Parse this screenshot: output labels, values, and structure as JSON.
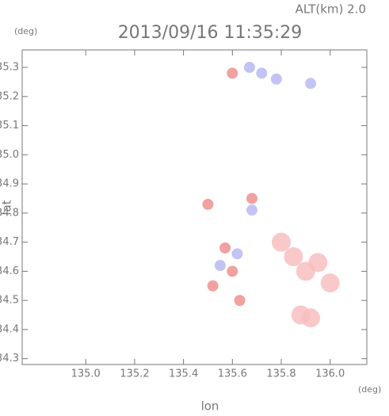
{
  "chart_data": {
    "type": "scatter",
    "title": "2013/09/16 11:35:29",
    "subtitle": "ALT(km) 2.0",
    "y_unit": "(deg)",
    "x_unit": "(deg)",
    "ylabel": "lat",
    "xlabel": "lon",
    "xlim": [
      134.74,
      136.15
    ],
    "ylim": [
      34.28,
      35.36
    ],
    "xticks": [
      {
        "value": 135.0,
        "label": "135.0"
      },
      135.2,
      135.4,
      135.6,
      135.8,
      {
        "value": 136.0,
        "label": "136.0"
      }
    ],
    "yticks": [
      35.3,
      35.2,
      35.1,
      {
        "value": 35.0,
        "label": "35.0"
      },
      34.9,
      34.8,
      34.7,
      34.6,
      34.5,
      34.4,
      34.3
    ],
    "series": [
      {
        "color": "#b8b8f4",
        "x": [
          135.67,
          135.72,
          135.78,
          135.92,
          135.55,
          135.62,
          135.68
        ],
        "y": [
          35.3,
          35.28,
          35.26,
          35.245,
          34.62,
          34.66,
          34.81
        ]
      },
      {
        "color": "#f09090",
        "x": [
          135.6,
          135.6,
          135.5,
          135.68,
          135.57,
          135.52,
          135.63
        ],
        "y": [
          35.28,
          34.6,
          34.83,
          34.85,
          34.68,
          34.55,
          34.5
        ]
      },
      {
        "color": "#f8c0c0",
        "x": [
          135.85,
          135.9,
          136.0,
          135.88,
          135.8,
          135.95,
          135.92
        ],
        "y": [
          34.65,
          34.6,
          34.56,
          34.45,
          34.7,
          34.63,
          34.44
        ]
      }
    ]
  }
}
